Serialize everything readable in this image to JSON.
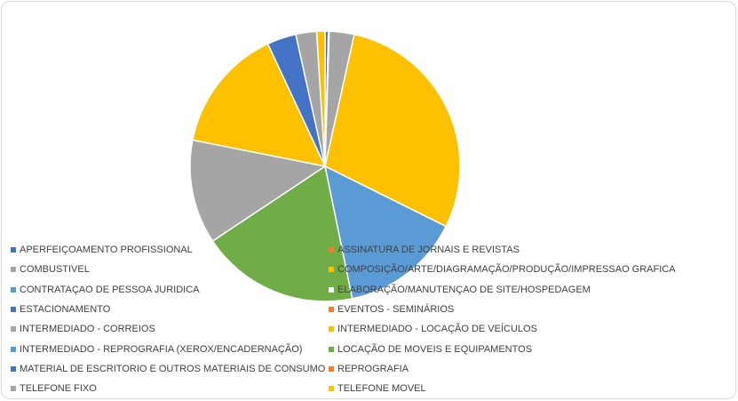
{
  "chart_data": {
    "type": "pie",
    "title": "",
    "legend_position": "bottom",
    "slices": [
      {
        "label": "APERFEIÇOAMENTO PROFISSIONAL",
        "value": 0.4,
        "color": "#4472C4"
      },
      {
        "label": "ASSINATURA DE JORNAIS E REVISTAS",
        "value": 0.1,
        "color": "#ED7D31"
      },
      {
        "label": "COMBUSTIVEL",
        "value": 3.0,
        "color": "#A5A5A5"
      },
      {
        "label": "COMPOSIÇÃO/ARTE/DIAGRAMAÇÃO/PRODUÇÃO/IMPRESSAO GRAFICA",
        "value": 29.0,
        "color": "#FFC000"
      },
      {
        "label": "CONTRATAÇAO DE PESSOA JURIDICA",
        "value": 14.5,
        "color": "#5B9BD5"
      },
      {
        "label": "ELABORAÇÃO/MANUTENÇAO DE SITE/HOSPEDAGEM",
        "value": 0.0,
        "color": "#70AD47"
      },
      {
        "label": "ESTACIONAMENTO",
        "value": 0.0,
        "color": "#264478"
      },
      {
        "label": "EVENTOS - SEMINÁRIOS",
        "value": 0.0,
        "color": "#9E480E"
      },
      {
        "label": "INTERMEDIADO - CORREIOS",
        "value": 0.0,
        "color": "#636363"
      },
      {
        "label": "INTERMEDIADO - LOCAÇÃO DE VEÍCULOS",
        "value": 0.0,
        "color": "#997300"
      },
      {
        "label": "INTERMEDIADO - REPROGRAFIA (XEROX/ENCADERNAÇÃO)",
        "value": 0.0,
        "color": "#255E91"
      },
      {
        "label": "LOCAÇÃO DE MOVEIS E EQUIPAMENTOS",
        "value": 19.0,
        "color": "#70AD47"
      },
      {
        "label": "MATERIAL DE ESCRITORIO E OUTROS MATERIAIS DE CONSUMO",
        "value": 0.0,
        "color": "#4472C4"
      },
      {
        "label": "REPROGRAFIA",
        "value": 0.0,
        "color": "#ED7D31"
      },
      {
        "label": "TELEFONE FIXO",
        "value": 12.5,
        "color": "#A5A5A5"
      },
      {
        "label": "TELEFONE MOVEL",
        "value": 15.0,
        "color": "#FFC000"
      },
      {
        "label": "",
        "value": 3.5,
        "color": "#4472C4"
      },
      {
        "label": "",
        "value": 2.5,
        "color": "#A5A5A5"
      },
      {
        "label": "",
        "value": 1.0,
        "color": "#FFC000"
      }
    ],
    "legend": [
      {
        "label": "APERFEIÇOAMENTO PROFISSIONAL",
        "color": "#4472C4"
      },
      {
        "label": "ASSINATURA DE JORNAIS E REVISTAS",
        "color": "#ED7D31"
      },
      {
        "label": "COMBUSTIVEL",
        "color": "#A5A5A5"
      },
      {
        "label": "COMPOSIÇÃO/ARTE/DIAGRAMAÇÃO/PRODUÇÃO/IMPRESSAO GRAFICA",
        "color": "#FFC000"
      },
      {
        "label": "CONTRATAÇAO DE PESSOA JURIDICA",
        "color": "#5B9BD5"
      },
      {
        "label": "ELABORAÇÃO/MANUTENÇAO DE SITE/HOSPEDAGEM",
        "color": "#ffffff"
      },
      {
        "label": "ESTACIONAMENTO",
        "color": "#4472C4"
      },
      {
        "label": "EVENTOS - SEMINÁRIOS",
        "color": "#ED7D31"
      },
      {
        "label": "INTERMEDIADO - CORREIOS",
        "color": "#A5A5A5"
      },
      {
        "label": "INTERMEDIADO - LOCAÇÃO DE VEÍCULOS",
        "color": "#FFC000"
      },
      {
        "label": "INTERMEDIADO - REPROGRAFIA (XEROX/ENCADERNAÇÃO)",
        "color": "#5B9BD5"
      },
      {
        "label": "LOCAÇÃO DE MOVEIS E EQUIPAMENTOS",
        "color": "#70AD47"
      },
      {
        "label": "MATERIAL DE ESCRITORIO E OUTROS MATERIAIS DE CONSUMO",
        "color": "#4472C4"
      },
      {
        "label": "REPROGRAFIA",
        "color": "#ED7D31"
      },
      {
        "label": "TELEFONE FIXO",
        "color": "#A5A5A5"
      },
      {
        "label": "TELEFONE MOVEL",
        "color": "#FFC000"
      }
    ]
  }
}
